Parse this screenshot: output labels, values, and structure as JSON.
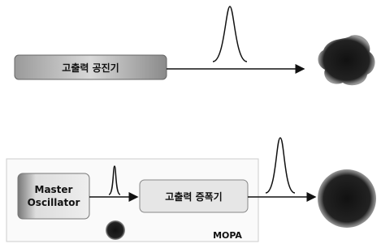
{
  "top": {
    "resonator_label": "고출력 공진기"
  },
  "bottom": {
    "oscillator_label": "Master Oscillator",
    "amplifier_label": "고출력 증폭기",
    "system_label": "MOPA"
  }
}
